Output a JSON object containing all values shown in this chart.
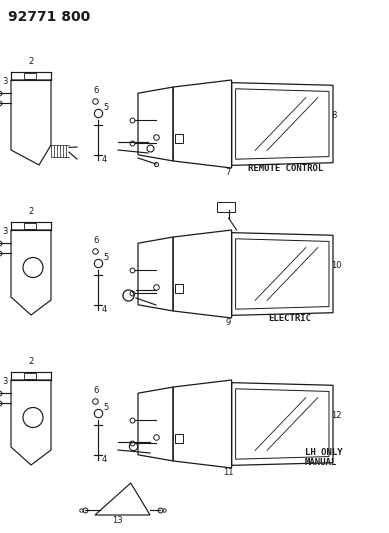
{
  "title": "92771 800",
  "bg_color": "#ffffff",
  "line_color": "#1a1a1a",
  "labels": {
    "remote_control": "REMOTE CONTROL",
    "electric": "ELECTRIC",
    "lh_only": "LH ONLY",
    "manual": "MANUAL"
  },
  "title_fontsize": 10,
  "label_fontsize": 6.5,
  "num_fontsize": 6
}
